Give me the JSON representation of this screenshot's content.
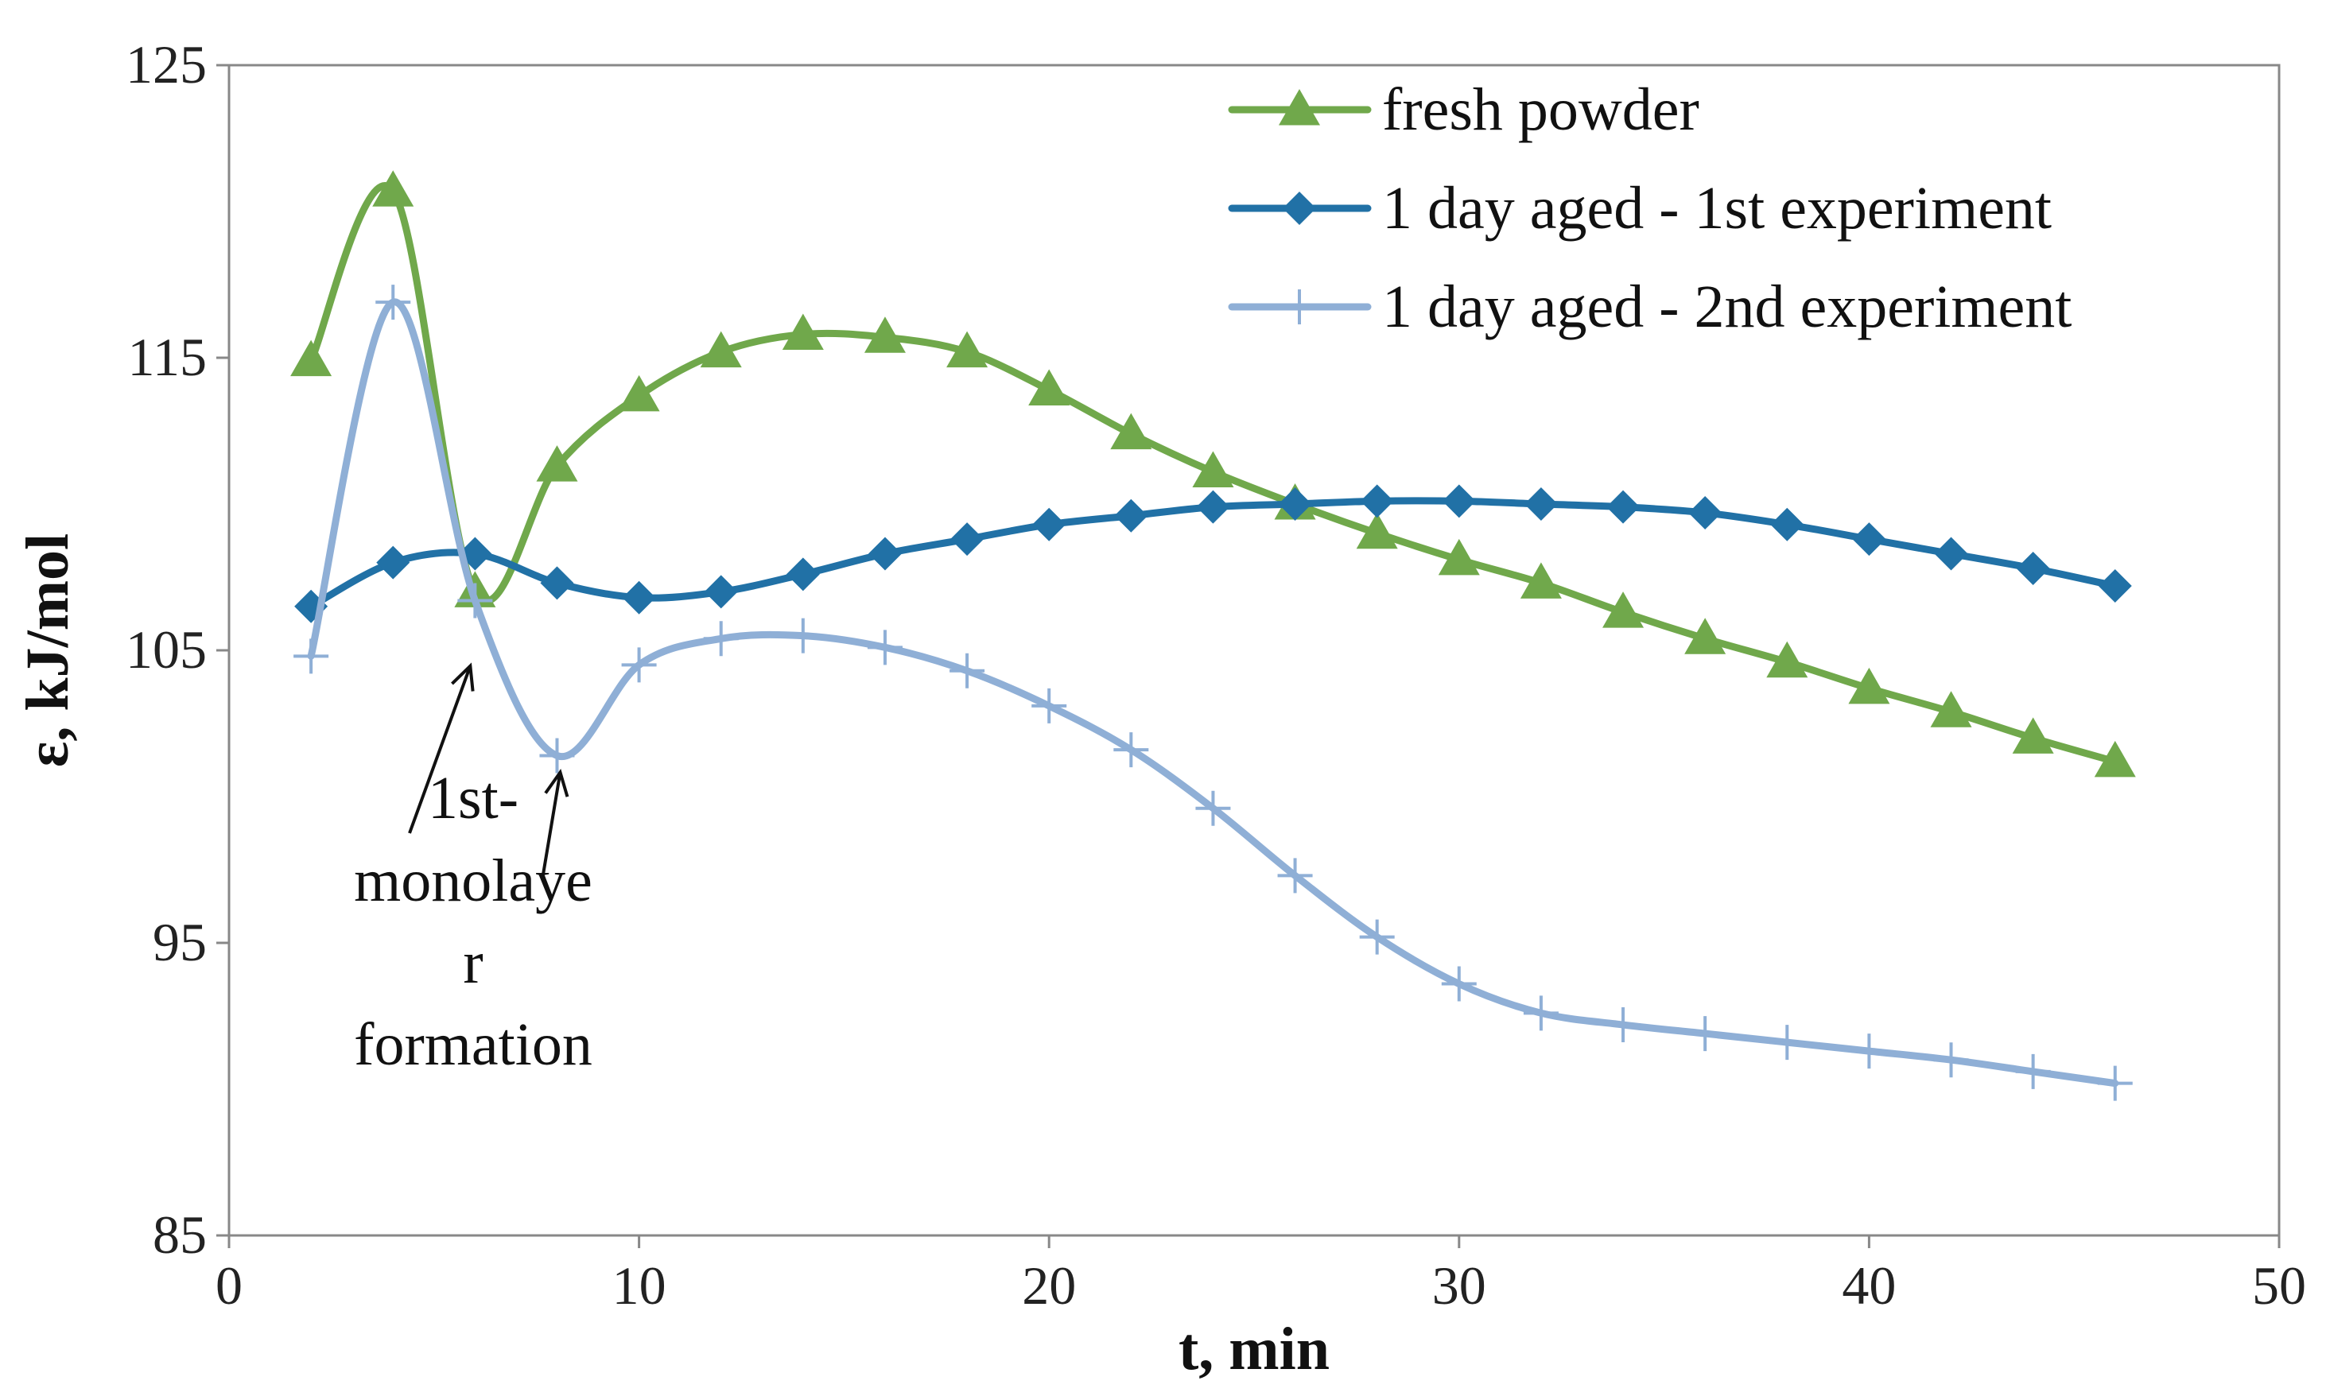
{
  "chart_data": {
    "type": "line",
    "title": "",
    "xlabel": "t, min",
    "ylabel": "ε, kJ/mol",
    "xlim": [
      0,
      50
    ],
    "ylim": [
      85,
      125
    ],
    "x_ticks": [
      "0",
      "10",
      "20",
      "30",
      "40",
      "50"
    ],
    "y_ticks": [
      "85",
      "95",
      "105",
      "115",
      "125"
    ],
    "grid": false,
    "legend_position": "top-right",
    "x": [
      2,
      4,
      6,
      8,
      10,
      12,
      14,
      16,
      18,
      20,
      22,
      24,
      26,
      28,
      30,
      32,
      34,
      36,
      38,
      40,
      42,
      44,
      46
    ],
    "series": [
      {
        "name": "fresh powder",
        "color": "#70A84B",
        "marker": "triangle",
        "values": [
          114.9,
          120.7,
          107.0,
          111.3,
          113.7,
          115.2,
          115.8,
          115.7,
          115.2,
          113.9,
          112.4,
          111.1,
          110.0,
          109.0,
          108.1,
          107.3,
          106.3,
          105.4,
          104.6,
          103.7,
          102.9,
          102.0,
          101.2
        ]
      },
      {
        "name": "1 day aged - 1st experiment",
        "color": "#2171A6",
        "marker": "diamond",
        "values": [
          106.5,
          108.0,
          108.3,
          107.3,
          106.8,
          107.0,
          107.6,
          108.3,
          108.8,
          109.3,
          109.6,
          109.9,
          110.0,
          110.1,
          110.1,
          110.0,
          109.9,
          109.7,
          109.3,
          108.8,
          108.3,
          107.8,
          107.2
        ]
      },
      {
        "name": "1 day aged - 2nd experiment",
        "color": "#8FAFD6",
        "marker": "plus",
        "values": [
          104.8,
          116.9,
          106.7,
          101.4,
          104.5,
          105.4,
          105.5,
          105.1,
          104.3,
          103.1,
          101.6,
          99.6,
          97.3,
          95.2,
          93.6,
          92.6,
          92.2,
          91.9,
          91.6,
          91.3,
          91.0,
          90.6,
          90.2
        ]
      }
    ],
    "annotation": {
      "lines": [
        "1st-",
        "monolaye",
        "r",
        "formation"
      ],
      "arrow_targets": [
        [
          6,
          104.9
        ],
        [
          8,
          101.1
        ]
      ]
    }
  }
}
